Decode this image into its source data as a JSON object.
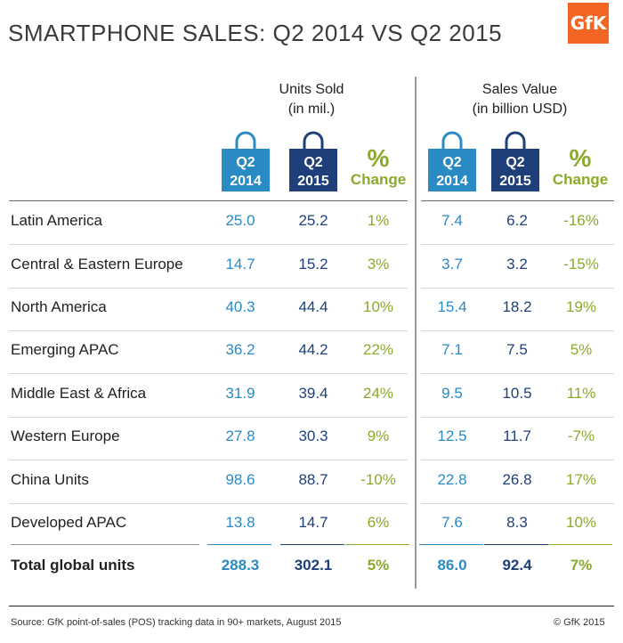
{
  "title": "SMARTPHONE SALES: Q2 2014 VS Q2 2015",
  "logo": "GfK",
  "groups": {
    "units": {
      "line1": "Units Sold",
      "line2": "(in mil.)"
    },
    "value": {
      "line1": "Sales Value",
      "line2": "(in billion USD)"
    }
  },
  "bags": {
    "y2014": {
      "line1": "Q2",
      "line2": "2014"
    },
    "y2015": {
      "line1": "Q2",
      "line2": "2015"
    }
  },
  "change_header": {
    "symbol": "%",
    "word": "Change"
  },
  "colors": {
    "y2014": "#2a8ac4",
    "y2015": "#1f3f7a",
    "change": "#8aaa2a",
    "logo": "#f26522"
  },
  "chart_data": {
    "type": "table",
    "title": "SMARTPHONE SALES: Q2 2014 VS Q2 2015",
    "columns": [
      "Units Sold Q2 2014",
      "Units Sold Q2 2015",
      "Units % Change",
      "Sales Value Q2 2014",
      "Sales Value Q2 2015",
      "Sales Value % Change"
    ],
    "rows": [
      {
        "region": "Latin America",
        "u14": "25.0",
        "u15": "25.2",
        "uch": "1%",
        "v14": "7.4",
        "v15": "6.2",
        "vch": "-16%"
      },
      {
        "region": "Central & Eastern Europe",
        "u14": "14.7",
        "u15": "15.2",
        "uch": "3%",
        "v14": "3.7",
        "v15": "3.2",
        "vch": "-15%"
      },
      {
        "region": "North America",
        "u14": "40.3",
        "u15": "44.4",
        "uch": "10%",
        "v14": "15.4",
        "v15": "18.2",
        "vch": "19%"
      },
      {
        "region": "Emerging APAC",
        "u14": "36.2",
        "u15": "44.2",
        "uch": "22%",
        "v14": "7.1",
        "v15": "7.5",
        "vch": "5%"
      },
      {
        "region": "Middle East & Africa",
        "u14": "31.9",
        "u15": "39.4",
        "uch": "24%",
        "v14": "9.5",
        "v15": "10.5",
        "vch": "11%"
      },
      {
        "region": "Western Europe",
        "u14": "27.8",
        "u15": "30.3",
        "uch": "9%",
        "v14": "12.5",
        "v15": "11.7",
        "vch": "-7%"
      },
      {
        "region": "China Units",
        "u14": "98.6",
        "u15": "88.7",
        "uch": "-10%",
        "v14": "22.8",
        "v15": "26.8",
        "vch": "17%"
      },
      {
        "region": "Developed APAC",
        "u14": "13.8",
        "u15": "14.7",
        "uch": "6%",
        "v14": "7.6",
        "v15": "8.3",
        "vch": "10%"
      }
    ],
    "total": {
      "region": "Total global units",
      "u14": "288.3",
      "u15": "302.1",
      "uch": "5%",
      "v14": "86.0",
      "v15": "92.4",
      "vch": "7%"
    }
  },
  "footer": {
    "source": "Source: GfK point-of-sales (POS) tracking data in 90+ markets, August 2015",
    "copyright": "© GfK 2015"
  }
}
